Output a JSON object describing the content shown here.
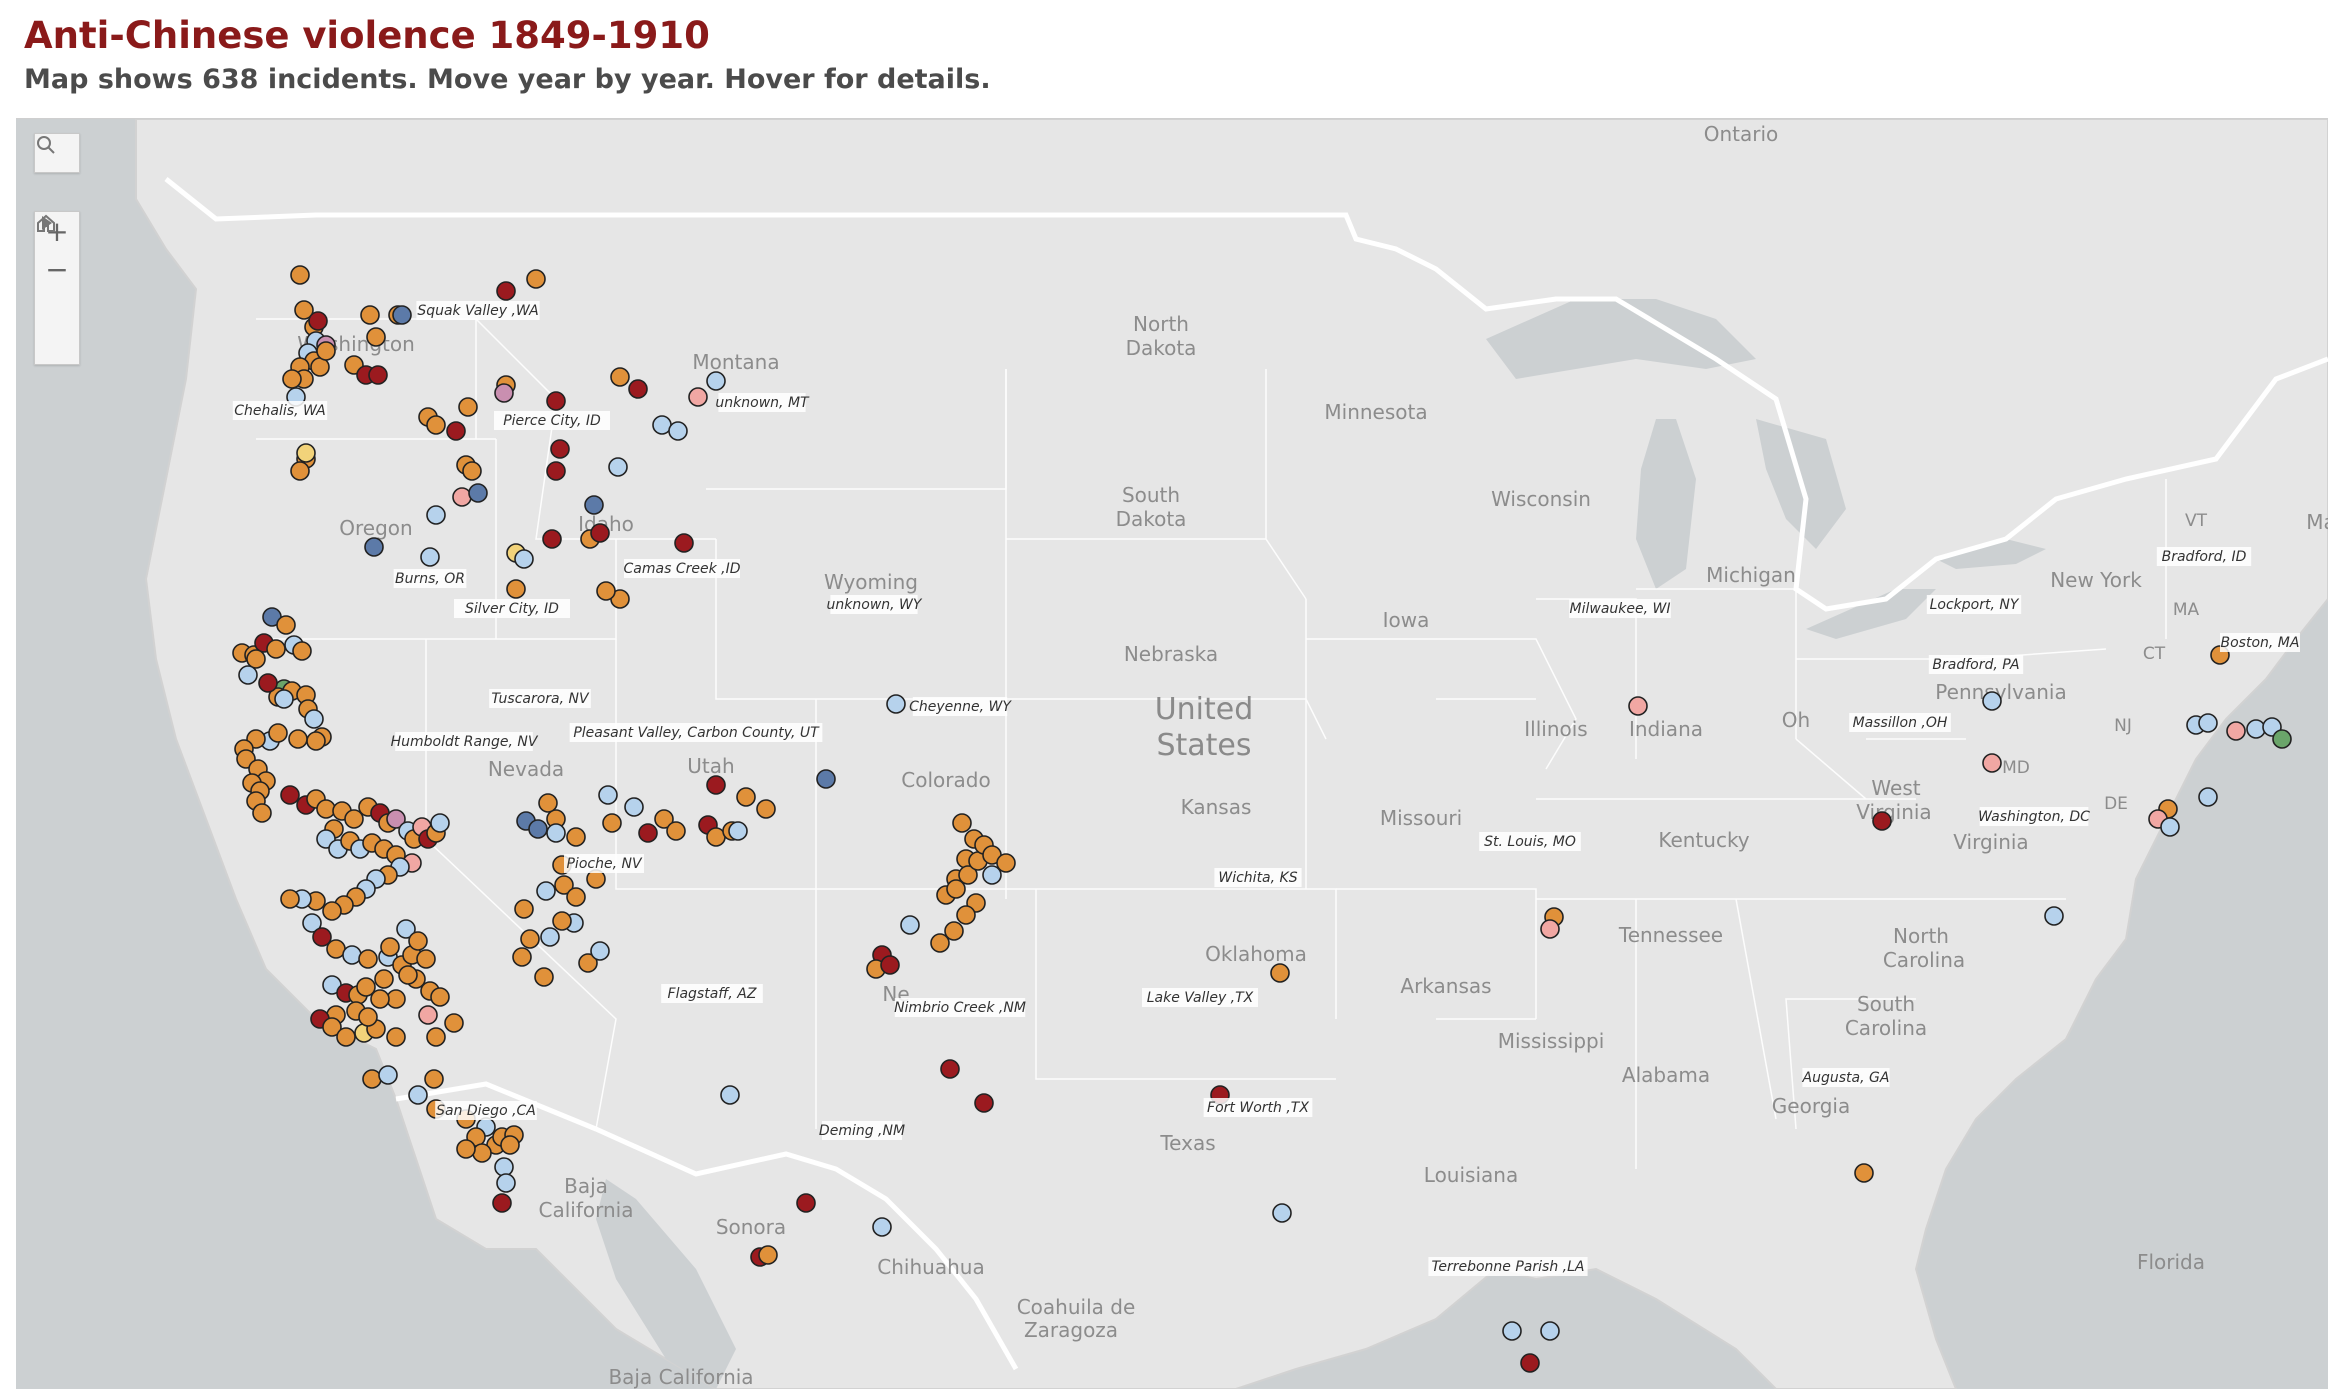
{
  "title": "Anti-Chinese violence 1849-1910",
  "subtitle": "Map shows 638 incidents. Move year by year. Hover for details.",
  "colors": {
    "title": "#8a1a1a",
    "dark_red": "#9b1a1f",
    "orange": "#e0913a",
    "light_blue": "#b6d2ec",
    "navy": "#5c7aa8",
    "pink": "#f1a7a3",
    "mauve": "#c98fb0",
    "yellow": "#f2d37a",
    "green": "#6aa56a"
  },
  "controls": {
    "search": "search-icon",
    "zoom_in": "+",
    "zoom_out": "−",
    "home": "home-icon",
    "play": "play-icon"
  },
  "map_labels": {
    "country": [
      "United",
      "States"
    ],
    "states": [
      {
        "name": "Ontario"
      },
      {
        "name": "North"
      },
      {
        "name": "Dakota"
      },
      {
        "name": "Minnesota"
      },
      {
        "name": "Montana"
      },
      {
        "name": "Washington"
      },
      {
        "name": "Oregon"
      },
      {
        "name": "Idaho"
      },
      {
        "name": "South"
      },
      {
        "name": "Dakota "
      },
      {
        "name": "Wisconsin"
      },
      {
        "name": "Michigan"
      },
      {
        "name": "New York"
      },
      {
        "name": "Wyoming"
      },
      {
        "name": "Iowa"
      },
      {
        "name": "Nebraska"
      },
      {
        "name": "Illinois"
      },
      {
        "name": "Indiana"
      },
      {
        "name": "Oh"
      },
      {
        "name": "Pennsylvania"
      },
      {
        "name": "Nevada"
      },
      {
        "name": "Utah"
      },
      {
        "name": "Colorado"
      },
      {
        "name": "Kansas"
      },
      {
        "name": "Missouri"
      },
      {
        "name": "West"
      },
      {
        "name": "Virginia"
      },
      {
        "name": "Kentucky"
      },
      {
        "name": "Virginia "
      },
      {
        "name": "MD"
      },
      {
        "name": "DE"
      },
      {
        "name": "NJ"
      },
      {
        "name": "CT"
      },
      {
        "name": "MA"
      },
      {
        "name": "VT"
      },
      {
        "name": "Tennessee"
      },
      {
        "name": "North "
      },
      {
        "name": "Carolina"
      },
      {
        "name": "Oklahoma"
      },
      {
        "name": "Arkansas"
      },
      {
        "name": "South "
      },
      {
        "name": "Carolina "
      },
      {
        "name": "Mississippi"
      },
      {
        "name": "Alabama"
      },
      {
        "name": "Georgia"
      },
      {
        "name": "Texas"
      },
      {
        "name": "Louisiana"
      },
      {
        "name": "Florida"
      },
      {
        "name": "Ne"
      },
      {
        "name": "Baja"
      },
      {
        "name": "California"
      },
      {
        "name": "Sonora"
      },
      {
        "name": "Chihuahua"
      },
      {
        "name": "Coahuila de"
      },
      {
        "name": "Zaragoza"
      },
      {
        "name": "Baja California"
      },
      {
        "name": "Ma"
      }
    ]
  },
  "incident_labels": [
    "Squak Valley ,WA",
    "Chehalis, WA",
    "Pierce City, ID",
    "unknown, MT",
    "Burns, OR",
    "Silver City, ID",
    "Camas Creek ,ID",
    "unknown, WY",
    "Tuscarora, NV",
    "Humboldt Range, NV",
    "Pleasant Valley, Carbon County, UT",
    "Cheyenne, WY",
    "Pioche, NV",
    "Flagstaff, AZ",
    "Nimbrio Creek ,NM",
    "San Diego ,CA",
    "Deming ,NM",
    "Wichita, KS",
    "Lake Valley ,TX",
    "Fort Worth ,TX",
    "St. Louis, MO",
    "Milwaukee, WI",
    "Massillon ,OH",
    "Lockport, NY",
    "Bradford, PA",
    "Bradford, ID",
    "Boston, MA",
    "Washington, DC",
    "Augusta, GA",
    "Terrebonne Parish ,LA"
  ]
}
